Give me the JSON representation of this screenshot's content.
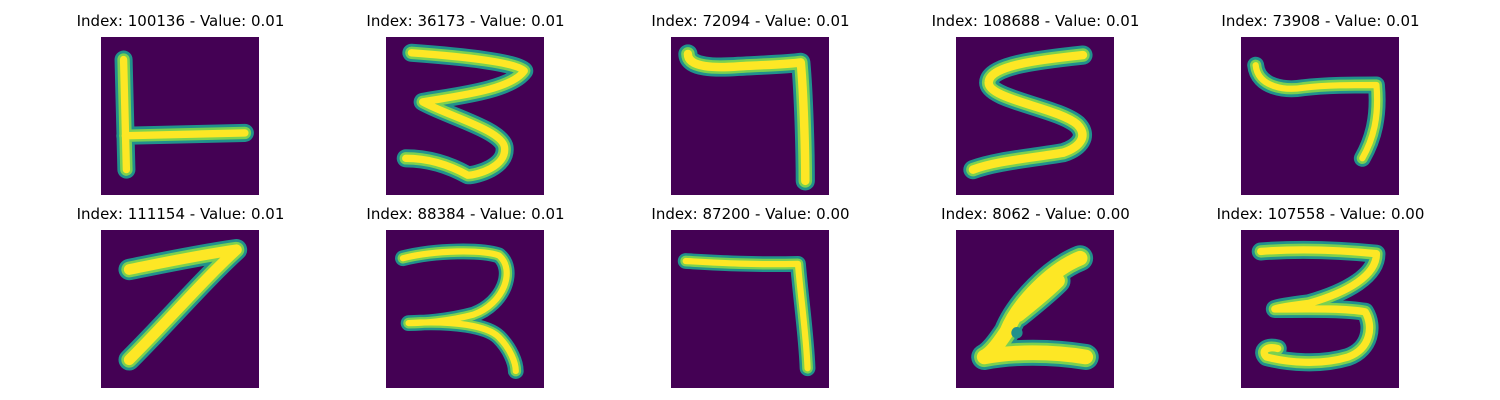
{
  "figure": {
    "colors": {
      "background": "#440154",
      "stroke_edge": "#21918c",
      "stroke_mid": "#7ad151",
      "stroke_core": "#fde725"
    },
    "panels": [
      {
        "title": "Index: 100136 - Value: 0.01",
        "digit": "1"
      },
      {
        "title": "Index: 36173 - Value: 0.01",
        "digit": "3"
      },
      {
        "title": "Index: 72094 - Value: 0.01",
        "digit": "7"
      },
      {
        "title": "Index: 108688 - Value: 0.01",
        "digit": "5"
      },
      {
        "title": "Index: 73908 - Value: 0.01",
        "digit": "7"
      },
      {
        "title": "Index: 111154 - Value: 0.01",
        "digit": "7"
      },
      {
        "title": "Index: 88384 - Value: 0.01",
        "digit": "3"
      },
      {
        "title": "Index: 87200 - Value: 0.00",
        "digit": "7"
      },
      {
        "title": "Index: 8062 - Value: 0.00",
        "digit": "6"
      },
      {
        "title": "Index: 107558 - Value: 0.00",
        "digit": "3"
      }
    ]
  }
}
